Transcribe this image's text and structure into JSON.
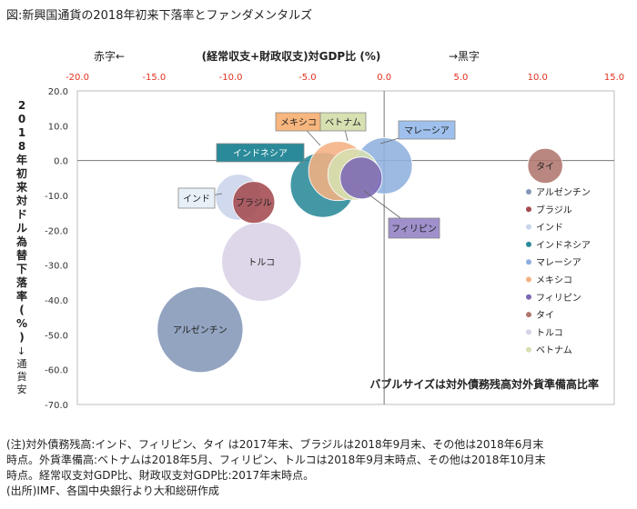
{
  "figure_title": "図:新興国通貨の2018年初来下落率とファンダメンタルズ",
  "colors": {
    "axis_top": "#e0301e",
    "axis_left": "#222222"
  },
  "chart_data": {
    "type": "scatter",
    "bubble": true,
    "title": "(経常収支+財政収支)対GDP比 (%)",
    "top_left_note": "赤字←",
    "top_right_note": "→黒字",
    "xlabel": "",
    "ylabel": "2018年初来対ドル為替下落率 (%)",
    "ylabel_sub": "→通貨安",
    "xlim": [
      -20,
      15
    ],
    "ylim": [
      -70,
      20
    ],
    "x_ticks": [
      "-20.0",
      "-15.0",
      "-10.0",
      "-5.0",
      "0.0",
      "5.0",
      "10.0",
      "15.0"
    ],
    "y_ticks": [
      "20.0",
      "10.0",
      "0.0",
      "-10.0",
      "-20.0",
      "-30.0",
      "-40.0",
      "-50.0",
      "-60.0",
      "-70.0"
    ],
    "grid": false,
    "legend_position": "right",
    "annotation": "バブルサイズは対外債務残高対外貨準備高比率",
    "series": [
      {
        "name": "アルゼンチン",
        "x": -12.0,
        "y": -48.5,
        "size": 4.2,
        "color": "#8497b8",
        "label": "アルゼンチン"
      },
      {
        "name": "ブラジル",
        "x": -8.5,
        "y": -12.0,
        "size": 1.0,
        "color": "#a34a4e",
        "label": "ブラジル"
      },
      {
        "name": "インド",
        "x": -9.5,
        "y": -10.5,
        "size": 1.2,
        "color": "#c9d4ea",
        "label": "インド"
      },
      {
        "name": "インドネシア",
        "x": -4.0,
        "y": -7.0,
        "size": 2.4,
        "color": "#2a8a99",
        "label": "インドネシア"
      },
      {
        "name": "マレーシア",
        "x": 0.0,
        "y": -1.5,
        "size": 1.8,
        "color": "#8fb0de",
        "label": "マレーシア"
      },
      {
        "name": "メキシコ",
        "x": -3.0,
        "y": -3.0,
        "size": 2.0,
        "color": "#f4b183",
        "label": "メキシコ"
      },
      {
        "name": "フィリピン",
        "x": -1.5,
        "y": -5.0,
        "size": 1.0,
        "color": "#7c68b4",
        "label": "フィリピン"
      },
      {
        "name": "タイ",
        "x": 10.5,
        "y": -1.5,
        "size": 0.7,
        "color": "#b0766e",
        "label": "タイ"
      },
      {
        "name": "トルコ",
        "x": -8.0,
        "y": -29.0,
        "size": 3.6,
        "color": "#d9d2e6",
        "label": "トルコ"
      },
      {
        "name": "ベトナム",
        "x": -2.0,
        "y": -4.0,
        "size": 1.5,
        "color": "#d6e0b1",
        "label": "ベトナム"
      }
    ]
  },
  "notes": [
    "(注)対外債務残高:インド、フィリピン、タイ は2017年末、ブラジルは2018年9月末、その他は2018年6月末",
    "時点。外貨準備高:ベトナムは2018年5月、フィリピン、トルコは2018年9月末時点、その他は2018年10月末",
    "時点。経常収支対GDP比、財政収支対GDP比:2017年末時点。",
    "(出所)IMF、各国中央銀行より大和総研作成"
  ]
}
